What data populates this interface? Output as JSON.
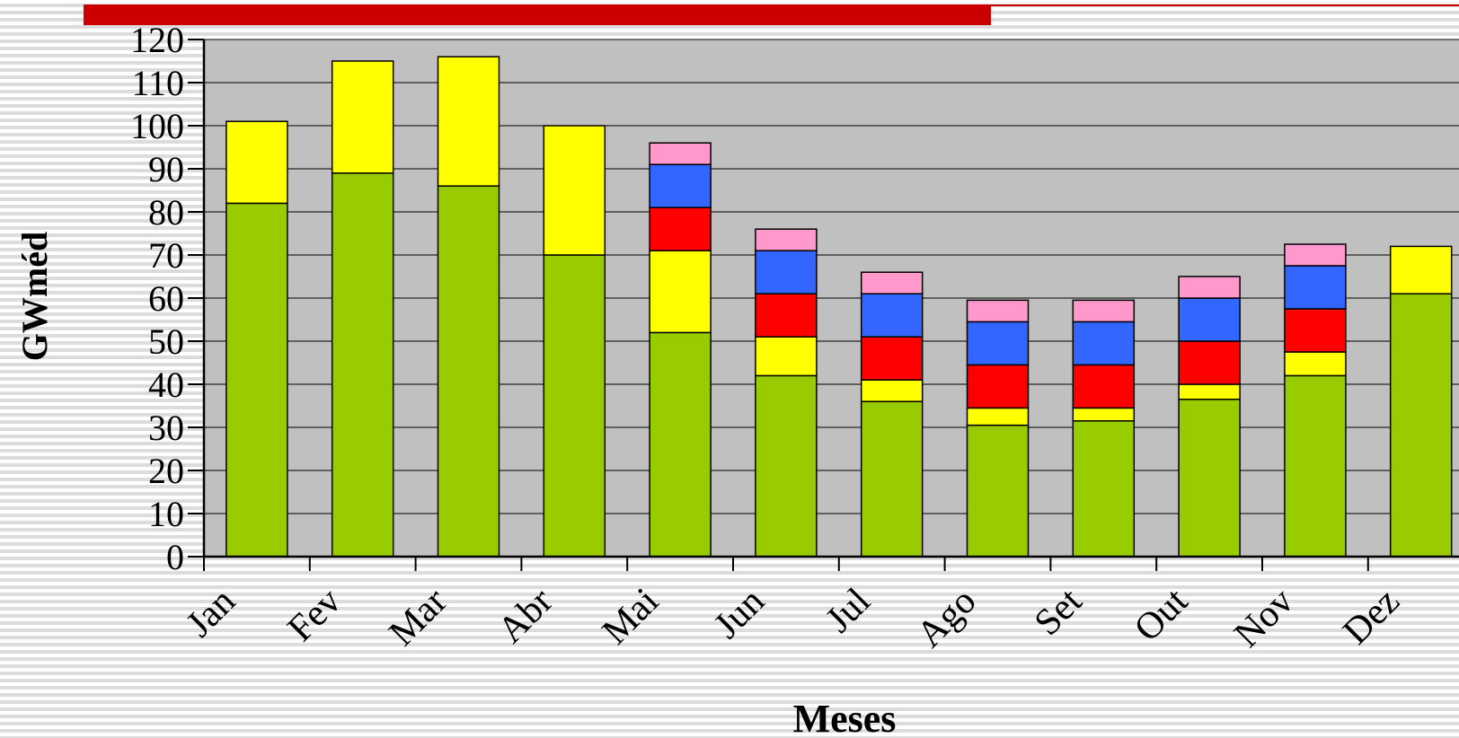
{
  "chart_data": {
    "type": "stacked_bar",
    "xlabel": "Meses",
    "ylabel": "GWméd",
    "categories": [
      "Jan",
      "Fev",
      "Mar",
      "Abr",
      "Mai",
      "Jun",
      "Jul",
      "Ago",
      "Set",
      "Out",
      "Nov",
      "Dez"
    ],
    "series": [
      {
        "color": "#99cc00",
        "values": [
          82,
          89,
          86,
          70,
          52,
          42,
          36,
          30.5,
          31.5,
          36.5,
          42,
          61
        ]
      },
      {
        "color": "#ffff00",
        "values": [
          19,
          26,
          30,
          30,
          19,
          9,
          5,
          4,
          3,
          3.5,
          5.5,
          11
        ]
      },
      {
        "color": "#ff0000",
        "values": [
          null,
          null,
          null,
          null,
          10,
          10,
          10,
          10,
          10,
          10,
          10,
          null
        ]
      },
      {
        "color": "#3366ff",
        "values": [
          null,
          null,
          null,
          null,
          10,
          10,
          10,
          10,
          10,
          10,
          10,
          null
        ]
      },
      {
        "color": "#ff99cc",
        "values": [
          null,
          null,
          null,
          null,
          5,
          5,
          5,
          5,
          5,
          5,
          5,
          null
        ]
      }
    ],
    "ylim": [
      0,
      120
    ],
    "yticks": [
      0,
      10,
      20,
      30,
      40,
      50,
      60,
      70,
      80,
      90,
      100,
      110,
      120
    ],
    "grid": true,
    "plot_background": "#c0c0c0"
  }
}
